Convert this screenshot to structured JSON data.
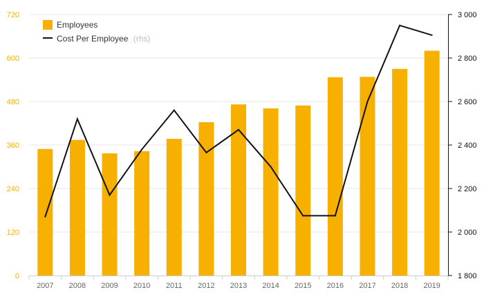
{
  "colors": {
    "bar": "#F7B000",
    "line": "#111111",
    "left_axis_text": "#F7B000",
    "right_axis_text": "#111111",
    "x_axis_text": "#666666",
    "grid": "#E6E6E6",
    "legend_text": "#333333",
    "legend_muted": "#BBBBBB"
  },
  "legend": {
    "employees_label": "Employees",
    "cost_label": "Cost Per Employee",
    "cost_suffix": "(rhs)",
    "placement": "top-left"
  },
  "chart_data": {
    "type": "bar",
    "categories": [
      "2007",
      "2008",
      "2009",
      "2010",
      "2011",
      "2012",
      "2013",
      "2014",
      "2015",
      "2016",
      "2017",
      "2018",
      "2019"
    ],
    "series": [
      {
        "name": "Employees",
        "type": "bar",
        "axis": "left",
        "values": [
          349,
          374,
          337,
          343,
          377,
          423,
          472,
          461,
          469,
          547,
          548,
          570,
          620
        ]
      },
      {
        "name": "Cost Per Employee",
        "type": "line",
        "axis": "right",
        "values": [
          2070,
          2520,
          2170,
          2380,
          2560,
          2365,
          2470,
          2300,
          2075,
          2075,
          2600,
          2950,
          2905
        ]
      }
    ],
    "y_left": {
      "min": 0,
      "max": 720,
      "ticks": [
        0,
        120,
        240,
        360,
        480,
        600,
        720
      ],
      "tick_labels": [
        "0",
        "120",
        "240",
        "360",
        "480",
        "600",
        "720"
      ]
    },
    "y_right": {
      "min": 1800,
      "max": 3000,
      "ticks": [
        1800,
        2000,
        2200,
        2400,
        2600,
        2800,
        3000
      ],
      "tick_labels": [
        "1 800",
        "2 000",
        "2 200",
        "2 400",
        "2 600",
        "2 800",
        "3 000"
      ]
    },
    "title": "",
    "xlabel": "",
    "ylabel": "",
    "grid": true
  }
}
